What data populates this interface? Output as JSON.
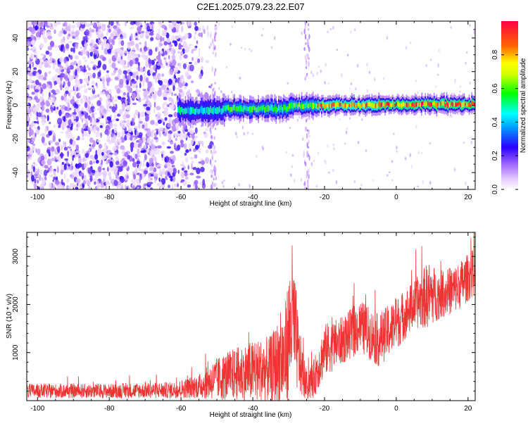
{
  "title": "C2E1.2025.079.23.22.E07",
  "chart_data": [
    {
      "type": "heatmap",
      "xlabel": "Height of straight line (km)",
      "ylabel": "Frequency (Hz)",
      "xlim": [
        -103,
        22
      ],
      "ylim": [
        -50,
        50
      ],
      "xticks": [
        -100,
        -80,
        -60,
        -40,
        -20,
        0,
        20
      ],
      "yticks": [
        -40,
        -20,
        0,
        20,
        40
      ],
      "colorbar": {
        "label": "Normalized spectral amplitude",
        "range": [
          0,
          1
        ],
        "ticks": [
          0.0,
          0.2,
          0.4,
          0.6,
          0.8
        ],
        "colors": [
          "#ffffff",
          "#d9b3ff",
          "#8a2be2",
          "#2a00ff",
          "#00e5ff",
          "#00ff00",
          "#ffff00",
          "#ff6600",
          "#ff0033"
        ]
      },
      "band": {
        "center_hz": 0,
        "start_km": -61,
        "segments": [
          {
            "x0": -61,
            "x1": -48,
            "y": -3,
            "halfwidth": 3.0,
            "amp": 0.45
          },
          {
            "x0": -48,
            "x1": -30,
            "y": -2,
            "halfwidth": 2.5,
            "amp": 0.55
          },
          {
            "x0": -30,
            "x1": -22,
            "y": 0,
            "halfwidth": 2.5,
            "amp": 0.6
          },
          {
            "x0": -22,
            "x1": -5,
            "y": 0,
            "halfwidth": 2.0,
            "amp": 0.8
          },
          {
            "x0": -5,
            "x1": 22,
            "y": 0.5,
            "halfwidth": 2.0,
            "amp": 0.85
          }
        ]
      },
      "noise": {
        "x_range": [
          -103,
          -52
        ],
        "density": "high"
      },
      "vertical_stripes_km": [
        -51,
        -25
      ]
    },
    {
      "type": "line",
      "xlabel": "Height of straight line (km)",
      "ylabel": "SNR (10 * v/v)",
      "xlim": [
        -103,
        22
      ],
      "ylim": [
        0,
        3500
      ],
      "xticks": [
        -100,
        -80,
        -60,
        -40,
        -20,
        0,
        20
      ],
      "yticks": [
        1000,
        2000,
        3000
      ],
      "line_color": "#ee3333",
      "envelope": [
        {
          "x": -103,
          "base": 200,
          "amp": 150
        },
        {
          "x": -80,
          "base": 200,
          "amp": 150
        },
        {
          "x": -62,
          "base": 220,
          "amp": 170
        },
        {
          "x": -55,
          "base": 300,
          "amp": 250
        },
        {
          "x": -50,
          "base": 450,
          "amp": 450
        },
        {
          "x": -45,
          "base": 550,
          "amp": 550
        },
        {
          "x": -40,
          "base": 600,
          "amp": 650
        },
        {
          "x": -35,
          "base": 650,
          "amp": 700
        },
        {
          "x": -31,
          "base": 900,
          "amp": 1100
        },
        {
          "x": -29,
          "base": 1800,
          "amp": 1500
        },
        {
          "x": -27,
          "base": 800,
          "amp": 700
        },
        {
          "x": -25,
          "base": 300,
          "amp": 300
        },
        {
          "x": -23,
          "base": 450,
          "amp": 400
        },
        {
          "x": -20,
          "base": 1050,
          "amp": 550
        },
        {
          "x": -15,
          "base": 1250,
          "amp": 500
        },
        {
          "x": -10,
          "base": 1550,
          "amp": 550
        },
        {
          "x": -5,
          "base": 1250,
          "amp": 550
        },
        {
          "x": 0,
          "base": 1600,
          "amp": 550
        },
        {
          "x": 5,
          "base": 2000,
          "amp": 500
        },
        {
          "x": 9,
          "base": 2200,
          "amp": 700
        },
        {
          "x": 12,
          "base": 2200,
          "amp": 500
        },
        {
          "x": 17,
          "base": 2350,
          "amp": 500
        },
        {
          "x": 22,
          "base": 2700,
          "amp": 500
        }
      ]
    }
  ]
}
